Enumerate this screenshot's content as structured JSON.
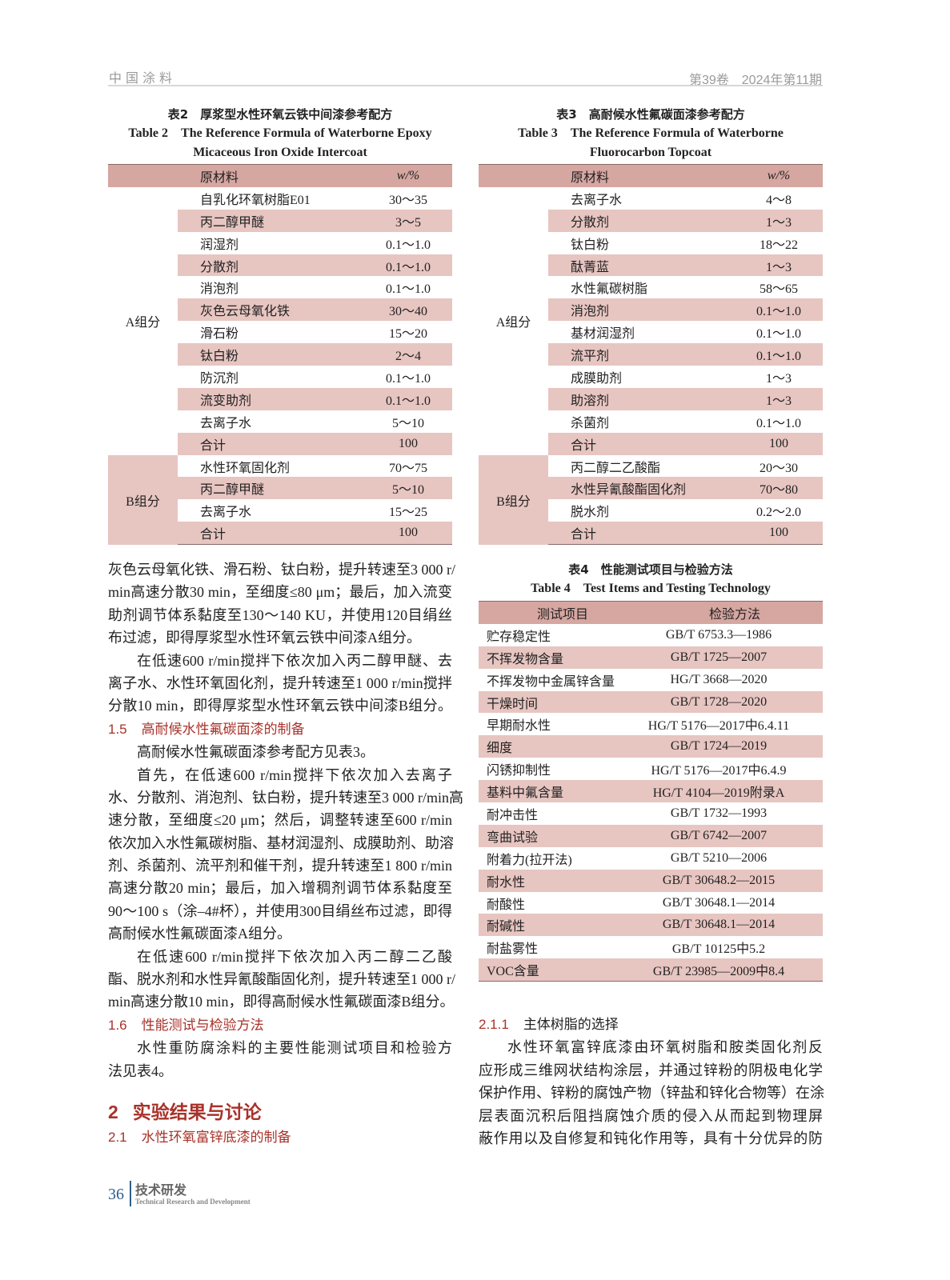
{
  "header": {
    "journal": "中国涂料",
    "issue": "第39卷　2024年第11期"
  },
  "table2": {
    "caption_cn": "表2　厚浆型水性环氧云铁中间漆参考配方",
    "caption_en_1": "Table 2　The Reference Formula of Waterborne Epoxy",
    "caption_en_2": "Micaceous Iron Oxide Intercoat",
    "headers": [
      "原材料",
      "w/%"
    ],
    "groups": [
      {
        "name": "A组分",
        "shaded": false,
        "rows": [
          [
            "自乳化环氧树脂E01",
            "30～35"
          ],
          [
            "丙二醇甲醚",
            "3～5"
          ],
          [
            "润湿剂",
            "0.1～1.0"
          ],
          [
            "分散剂",
            "0.1～1.0"
          ],
          [
            "消泡剂",
            "0.1～1.0"
          ],
          [
            "灰色云母氧化铁",
            "30～40"
          ],
          [
            "滑石粉",
            "15～20"
          ],
          [
            "钛白粉",
            "2～4"
          ],
          [
            "防沉剂",
            "0.1～1.0"
          ],
          [
            "流变助剂",
            "0.1～1.0"
          ],
          [
            "去离子水",
            "5～10"
          ],
          [
            "合计",
            "100"
          ]
        ]
      },
      {
        "name": "B组分",
        "shaded": true,
        "rows": [
          [
            "水性环氧固化剂",
            "70～75"
          ],
          [
            "丙二醇甲醚",
            "5～10"
          ],
          [
            "去离子水",
            "15～25"
          ],
          [
            "合计",
            "100"
          ]
        ]
      }
    ]
  },
  "table3": {
    "caption_cn": "表3　高耐候水性氟碳面漆参考配方",
    "caption_en_1": "Table 3　The Reference Formula of Waterborne",
    "caption_en_2": "Fluorocarbon Topcoat",
    "headers": [
      "原材料",
      "w/%"
    ],
    "groups": [
      {
        "name": "A组分",
        "shaded": false,
        "rows": [
          [
            "去离子水",
            "4～8"
          ],
          [
            "分散剂",
            "1～3"
          ],
          [
            "钛白粉",
            "18～22"
          ],
          [
            "酞菁蓝",
            "1～3"
          ],
          [
            "水性氟碳树脂",
            "58～65"
          ],
          [
            "消泡剂",
            "0.1～1.0"
          ],
          [
            "基材润湿剂",
            "0.1～1.0"
          ],
          [
            "流平剂",
            "0.1～1.0"
          ],
          [
            "成膜助剂",
            "1～3"
          ],
          [
            "助溶剂",
            "1～3"
          ],
          [
            "杀菌剂",
            "0.1～1.0"
          ],
          [
            "合计",
            "100"
          ]
        ]
      },
      {
        "name": "B组分",
        "shaded": true,
        "rows": [
          [
            "丙二醇二乙酸酯",
            "20～30"
          ],
          [
            "水性异氰酸酯固化剂",
            "70～80"
          ],
          [
            "脱水剂",
            "0.2～2.0"
          ],
          [
            "合计",
            "100"
          ]
        ]
      }
    ]
  },
  "table4": {
    "caption_cn": "表4　性能测试项目与检验方法",
    "caption_en": "Table 4　Test Items and Testing Technology",
    "headers": [
      "测试项目",
      "检验方法"
    ],
    "rows": [
      [
        "贮存稳定性",
        "GB/T 6753.3—1986"
      ],
      [
        "不挥发物含量",
        "GB/T 1725—2007"
      ],
      [
        "不挥发物中金属锌含量",
        "HG/T 3668—2020"
      ],
      [
        "干燥时间",
        "GB/T 1728—2020"
      ],
      [
        "早期耐水性",
        "HG/T 5176—2017中6.4.11"
      ],
      [
        "细度",
        "GB/T 1724—2019"
      ],
      [
        "闪锈抑制性",
        "HG/T 5176—2017中6.4.9"
      ],
      [
        "基料中氟含量",
        "HG/T 4104—2019附录A"
      ],
      [
        "耐冲击性",
        "GB/T 1732—1993"
      ],
      [
        "弯曲试验",
        "GB/T 6742—2007"
      ],
      [
        "附着力(拉开法)",
        "GB/T 5210—2006"
      ],
      [
        "耐水性",
        "GB/T 30648.2—2015"
      ],
      [
        "耐酸性",
        "GB/T 30648.1—2014"
      ],
      [
        "耐碱性",
        "GB/T 30648.1—2014"
      ],
      [
        "耐盐雾性",
        "GB/T 10125中5.2"
      ],
      [
        "VOC含量",
        "GB/T 23985—2009中8.4"
      ]
    ]
  },
  "left_text": [
    {
      "k": "j",
      "t": "灰色云母氧化铁、滑石粉、钛白粉，提升转速至3 000 r/"
    },
    {
      "k": "j",
      "t": "min高速分散30 min，至细度≤80 μm；最后，加入流变"
    },
    {
      "k": "j",
      "t": "助剂调节体系黏度至130～140 KU，并使用120目绢丝"
    },
    {
      "k": "e",
      "t": "布过滤，即得厚浆型水性环氧云铁中间漆A组分。"
    },
    {
      "k": "ji",
      "t": "在低速600 r/min搅拌下依次加入丙二醇甲醚、去"
    },
    {
      "k": "j",
      "t": "离子水、水性环氧固化剂，提升转速至1 000 r/min搅拌"
    },
    {
      "k": "j",
      "t": "分散10 min，即得厚浆型水性环氧云铁中间漆B组分。"
    },
    {
      "k": "h",
      "n": "1.5",
      "t": "高耐候水性氟碳面漆的制备"
    },
    {
      "k": "ei",
      "t": "高耐候水性氟碳面漆参考配方见表3。"
    },
    {
      "k": "ji",
      "t": "首先，在低速600 r/min搅拌下依次加入去离子"
    },
    {
      "k": "j",
      "t": "水、分散剂、消泡剂、钛白粉，提升转速至3 000 r/min高"
    },
    {
      "k": "j",
      "t": "速分散，至细度≤20 μm；然后，调整转速至600 r/min"
    },
    {
      "k": "j",
      "t": "依次加入水性氟碳树脂、基材润湿剂、成膜助剂、助溶"
    },
    {
      "k": "j",
      "t": "剂、杀菌剂、流平剂和催干剂，提升转速至1 800 r/min"
    },
    {
      "k": "j",
      "t": "高速分散20 min；最后，加入增稠剂调节体系黏度至"
    },
    {
      "k": "j",
      "t": "90～100 s（涂–4#杯），并使用300目绢丝布过滤，即得"
    },
    {
      "k": "e",
      "t": "高耐候水性氟碳面漆A组分。"
    },
    {
      "k": "ji",
      "t": "在低速600 r/min搅拌下依次加入丙二醇二乙酸"
    },
    {
      "k": "j",
      "t": "酯、脱水剂和水性异氰酸酯固化剂，提升转速至1 000 r/"
    },
    {
      "k": "j",
      "t": "min高速分散10 min，即得高耐候水性氟碳面漆B组分。"
    },
    {
      "k": "h",
      "n": "1.6",
      "t": "性能测试与检验方法"
    },
    {
      "k": "ji",
      "t": "水性重防腐涂料的主要性能测试项目和检验方"
    },
    {
      "k": "e",
      "t": "法见表4。"
    },
    {
      "k": "h2",
      "n": "2",
      "t": "实验结果与讨论"
    },
    {
      "k": "h",
      "n": "2.1",
      "t": "水性环氧富锌底漆的制备"
    }
  ],
  "right_text": [
    {
      "k": "h3",
      "n": "2.1.1",
      "t": "主体树脂的选择"
    },
    {
      "k": "ji",
      "t": "水性环氧富锌底漆由环氧树脂和胺类固化剂反"
    },
    {
      "k": "j",
      "t": "应形成三维网状结构涂层，并通过锌粉的阴极电化学"
    },
    {
      "k": "j",
      "t": "保护作用、锌粉的腐蚀产物（锌盐和锌化合物等）在涂"
    },
    {
      "k": "j",
      "t": "层表面沉积后阻挡腐蚀介质的侵入从而起到物理屏"
    },
    {
      "k": "j",
      "t": "蔽作用以及自修复和钝化作用等，具有十分优异的防"
    }
  ],
  "footer": {
    "page": "36",
    "section_cn": "技术研发",
    "section_en": "Technical Research and Development",
    "accent": "#2e5d8c"
  },
  "colors": {
    "header_row": "#d6a6a1",
    "shaded_row": "#e7c5c1",
    "heading": "#a8322a"
  }
}
